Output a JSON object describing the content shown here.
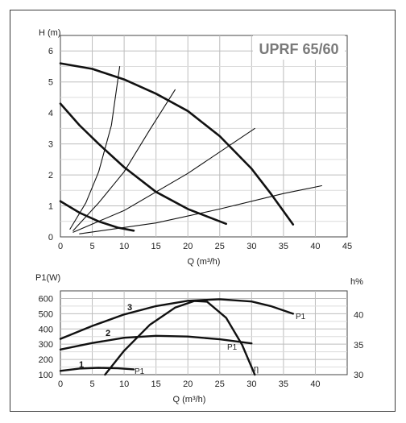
{
  "chart_data": [
    {
      "type": "line",
      "title": "UPRF 65/60",
      "ylabel": "H (m)",
      "xlabel": "Q (m³/h)",
      "xlim": [
        0,
        45
      ],
      "ylim": [
        0,
        6.5
      ],
      "x_ticks": [
        "0",
        "5",
        "10",
        "15",
        "20",
        "25",
        "30",
        "35",
        "40",
        "45"
      ],
      "y_ticks": [
        "0",
        "1",
        "2",
        "3",
        "4",
        "5",
        "6"
      ],
      "series": [
        {
          "points": [
            [
              0,
              5.6
            ],
            [
              5,
              5.42
            ],
            [
              10,
              5.08
            ],
            [
              15,
              4.62
            ],
            [
              20,
              4.06
            ],
            [
              25,
              3.25
            ],
            [
              30,
              2.2
            ],
            [
              33,
              1.4
            ],
            [
              36.5,
              0.4
            ]
          ]
        },
        {
          "points": [
            [
              0,
              4.3
            ],
            [
              3,
              3.6
            ],
            [
              6,
              3.0
            ],
            [
              10,
              2.25
            ],
            [
              15,
              1.45
            ],
            [
              20,
              0.9
            ],
            [
              26,
              0.42
            ]
          ]
        },
        {
          "points": [
            [
              0,
              1.15
            ],
            [
              3,
              0.78
            ],
            [
              6,
              0.5
            ],
            [
              9,
              0.3
            ],
            [
              11.5,
              0.2
            ]
          ]
        },
        {
          "points": [
            [
              1.5,
              0.25
            ],
            [
              4,
              1.1
            ],
            [
              6,
              2.1
            ],
            [
              8,
              3.6
            ],
            [
              9.3,
              5.5
            ]
          ]
        },
        {
          "points": [
            [
              2,
              0.2
            ],
            [
              6,
              1.1
            ],
            [
              10,
              2.1
            ],
            [
              14,
              3.45
            ],
            [
              18,
              4.75
            ]
          ]
        },
        {
          "points": [
            [
              2,
              0.15
            ],
            [
              10,
              0.85
            ],
            [
              20,
              2.05
            ],
            [
              30.5,
              3.5
            ]
          ]
        },
        {
          "points": [
            [
              3,
              0.1
            ],
            [
              15,
              0.45
            ],
            [
              25,
              0.9
            ],
            [
              35,
              1.4
            ],
            [
              41,
              1.65
            ]
          ]
        }
      ]
    },
    {
      "type": "line",
      "ylabel": "P1(W)",
      "ylabel_right": "h%",
      "xlabel": "Q (m³/h)",
      "xlim": [
        0,
        45
      ],
      "ylim": [
        100,
        650
      ],
      "y2lim": [
        30,
        44
      ],
      "x_ticks": [
        "0",
        "5",
        "10",
        "15",
        "20",
        "25",
        "30",
        "35",
        "40"
      ],
      "y_ticks": [
        "100",
        "200",
        "300",
        "400",
        "500",
        "600"
      ],
      "y2_ticks": [
        "30",
        "35",
        "40"
      ],
      "annotations": [
        "1",
        "2",
        "3",
        "P1",
        "P1",
        "P1",
        "η"
      ],
      "series": [
        {
          "label": "1",
          "values_axis": "left",
          "points": [
            [
              0,
              125
            ],
            [
              3,
              140
            ],
            [
              6,
              145
            ],
            [
              9,
              142
            ],
            [
              11.5,
              135
            ]
          ]
        },
        {
          "label": "2",
          "values_axis": "left",
          "points": [
            [
              0,
              265
            ],
            [
              5,
              308
            ],
            [
              10,
              342
            ],
            [
              15,
              355
            ],
            [
              20,
              350
            ],
            [
              25,
              332
            ],
            [
              30,
              305
            ]
          ]
        },
        {
          "label": "3",
          "values_axis": "left",
          "points": [
            [
              0,
              335
            ],
            [
              5,
              420
            ],
            [
              10,
              495
            ],
            [
              15,
              550
            ],
            [
              20,
              585
            ],
            [
              25,
              595
            ],
            [
              30,
              580
            ],
            [
              33,
              550
            ],
            [
              36.5,
              500
            ]
          ]
        },
        {
          "label": "η",
          "values_axis": "right",
          "points": [
            [
              7,
              30
            ],
            [
              10,
              34
            ],
            [
              14,
              38.3
            ],
            [
              18,
              41.2
            ],
            [
              21,
              42.3
            ],
            [
              23,
              42.2
            ],
            [
              26,
              39.5
            ],
            [
              28.5,
              35
            ],
            [
              30.5,
              30
            ]
          ]
        }
      ]
    }
  ]
}
